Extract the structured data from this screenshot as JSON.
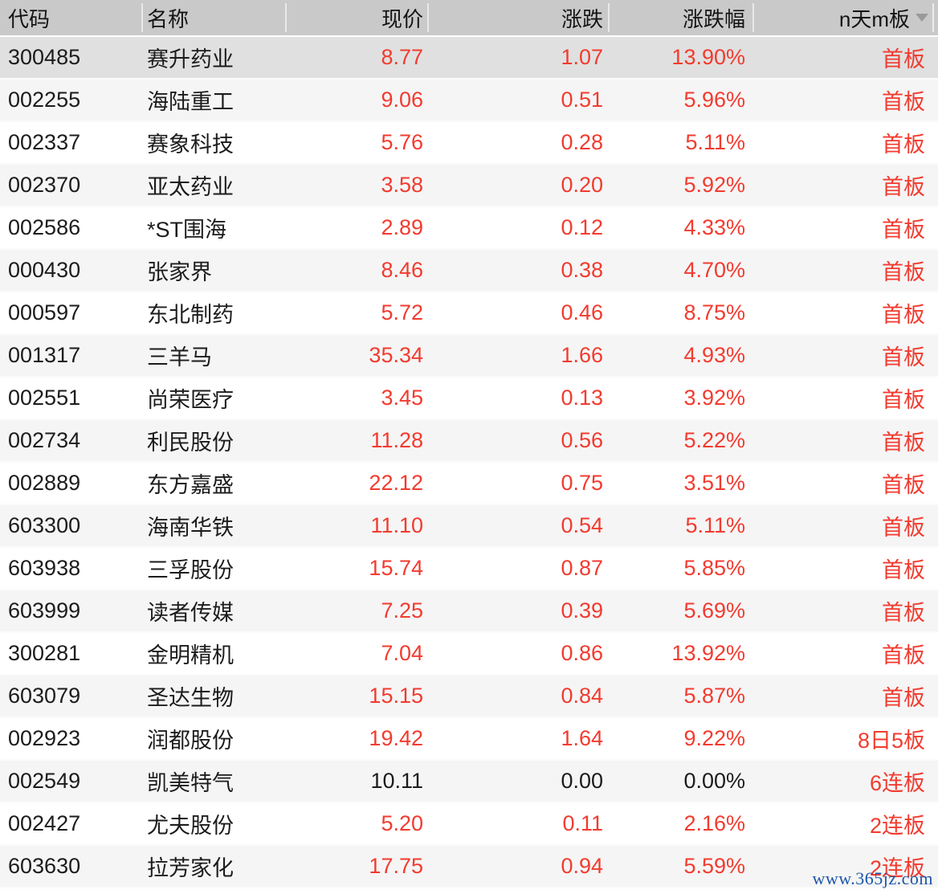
{
  "header": {
    "columns": [
      {
        "key": "code",
        "label": "代码"
      },
      {
        "key": "name",
        "label": "名称"
      },
      {
        "key": "price",
        "label": "现价"
      },
      {
        "key": "change",
        "label": "涨跌"
      },
      {
        "key": "pct",
        "label": "涨跌幅"
      },
      {
        "key": "board",
        "label": "n天m板",
        "sort_icon": "chevron-down-icon"
      }
    ]
  },
  "table": {
    "rows": [
      {
        "code": "300485",
        "name": "赛升药业",
        "price": "8.77",
        "change": "1.07",
        "pct": "13.90%",
        "board": "首板",
        "up": true,
        "selected": true
      },
      {
        "code": "002255",
        "name": "海陆重工",
        "price": "9.06",
        "change": "0.51",
        "pct": "5.96%",
        "board": "首板",
        "up": true
      },
      {
        "code": "002337",
        "name": "赛象科技",
        "price": "5.76",
        "change": "0.28",
        "pct": "5.11%",
        "board": "首板",
        "up": true
      },
      {
        "code": "002370",
        "name": "亚太药业",
        "price": "3.58",
        "change": "0.20",
        "pct": "5.92%",
        "board": "首板",
        "up": true
      },
      {
        "code": "002586",
        "name": "*ST围海",
        "price": "2.89",
        "change": "0.12",
        "pct": "4.33%",
        "board": "首板",
        "up": true
      },
      {
        "code": "000430",
        "name": "张家界",
        "price": "8.46",
        "change": "0.38",
        "pct": "4.70%",
        "board": "首板",
        "up": true
      },
      {
        "code": "000597",
        "name": "东北制药",
        "price": "5.72",
        "change": "0.46",
        "pct": "8.75%",
        "board": "首板",
        "up": true
      },
      {
        "code": "001317",
        "name": "三羊马",
        "price": "35.34",
        "change": "1.66",
        "pct": "4.93%",
        "board": "首板",
        "up": true
      },
      {
        "code": "002551",
        "name": "尚荣医疗",
        "price": "3.45",
        "change": "0.13",
        "pct": "3.92%",
        "board": "首板",
        "up": true
      },
      {
        "code": "002734",
        "name": "利民股份",
        "price": "11.28",
        "change": "0.56",
        "pct": "5.22%",
        "board": "首板",
        "up": true
      },
      {
        "code": "002889",
        "name": "东方嘉盛",
        "price": "22.12",
        "change": "0.75",
        "pct": "3.51%",
        "board": "首板",
        "up": true
      },
      {
        "code": "603300",
        "name": "海南华铁",
        "price": "11.10",
        "change": "0.54",
        "pct": "5.11%",
        "board": "首板",
        "up": true
      },
      {
        "code": "603938",
        "name": "三孚股份",
        "price": "15.74",
        "change": "0.87",
        "pct": "5.85%",
        "board": "首板",
        "up": true
      },
      {
        "code": "603999",
        "name": "读者传媒",
        "price": "7.25",
        "change": "0.39",
        "pct": "5.69%",
        "board": "首板",
        "up": true
      },
      {
        "code": "300281",
        "name": "金明精机",
        "price": "7.04",
        "change": "0.86",
        "pct": "13.92%",
        "board": "首板",
        "up": true
      },
      {
        "code": "603079",
        "name": "圣达生物",
        "price": "15.15",
        "change": "0.84",
        "pct": "5.87%",
        "board": "首板",
        "up": true
      },
      {
        "code": "002923",
        "name": "润都股份",
        "price": "19.42",
        "change": "1.64",
        "pct": "9.22%",
        "board": "8日5板",
        "up": true
      },
      {
        "code": "002549",
        "name": "凯美特气",
        "price": "10.11",
        "change": "0.00",
        "pct": "0.00%",
        "board": "6连板",
        "up": false
      },
      {
        "code": "002427",
        "name": "尤夫股份",
        "price": "5.20",
        "change": "0.11",
        "pct": "2.16%",
        "board": "2连板",
        "up": true
      },
      {
        "code": "603630",
        "name": "拉芳家化",
        "price": "17.75",
        "change": "0.94",
        "pct": "5.59%",
        "board": "2连板",
        "up": true
      }
    ]
  },
  "watermark": {
    "text": "www.365jz.com"
  },
  "colors": {
    "up_red": "#f23b2f",
    "flat_black": "#1c1c1c",
    "header_bg": "#c9c9c9",
    "selected_row_bg": "#e0e0e0",
    "striped_row_bg": "#f5f5f5",
    "watermark_blue": "#1d57a8"
  }
}
